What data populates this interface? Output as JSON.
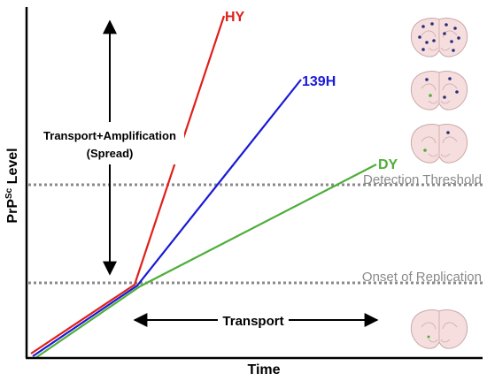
{
  "axes": {
    "y_label_main": "PrP",
    "y_label_sup": "Sc",
    "y_label_tail": " Level",
    "x_label": "Time"
  },
  "thresholds": {
    "detection": "Detection Threshold",
    "onset": "Onset of Replication"
  },
  "annotations": {
    "spread_line1": "Transport+Amplification",
    "spread_line2": "(Spread)",
    "transport": "Transport"
  },
  "strains": [
    {
      "name": "HY",
      "color": "#e0201b"
    },
    {
      "name": "139H",
      "color": "#1a1ad6"
    },
    {
      "name": "DY",
      "color": "#4fae3a"
    }
  ],
  "colors": {
    "axis": "#000000",
    "threshold": "#8a8a8a",
    "brain_fill": "#f6dede",
    "brain_outline": "#c9a8a8",
    "plaque": "#2a2f7a"
  },
  "brain_icons": [
    {
      "name": "coronal-brain-section-icon",
      "level": "high"
    },
    {
      "name": "coronal-brain-section-icon",
      "level": "medium"
    },
    {
      "name": "coronal-brain-section-icon",
      "level": "low"
    },
    {
      "name": "coronal-brain-section-icon",
      "level": "none"
    }
  ]
}
